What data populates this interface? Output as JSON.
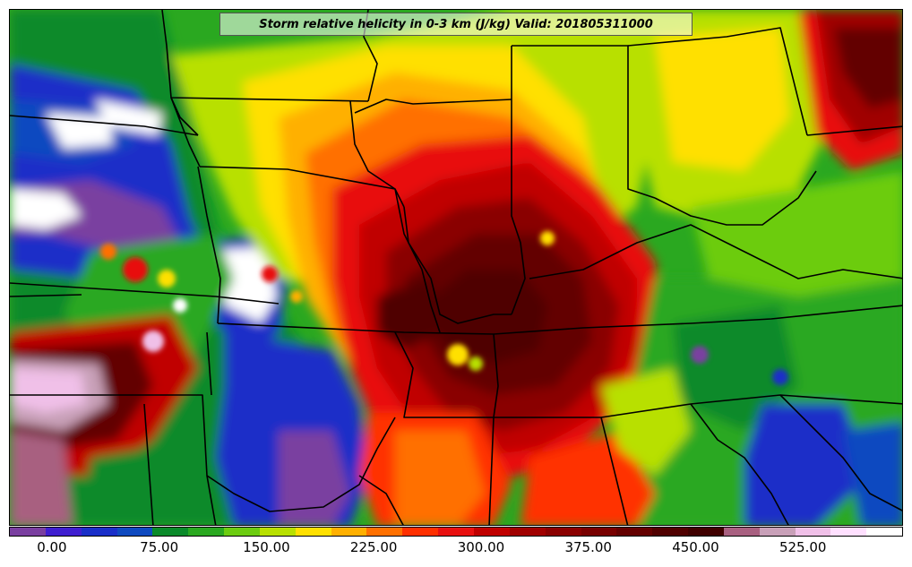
{
  "title": "Storm relative helicity in 0-3 km (J/kg) Valid: 201805311000",
  "colorbar": {
    "colors": [
      "#7a3fa0",
      "#3f1fd0",
      "#1a2fc8",
      "#0f4ac0",
      "#0a8a2a",
      "#2aa820",
      "#6ccc10",
      "#b8e000",
      "#ffe000",
      "#ffb000",
      "#ff7000",
      "#ff3000",
      "#e81010",
      "#c00000",
      "#a00000",
      "#8a0000",
      "#780000",
      "#640000",
      "#500000",
      "#400000",
      "#a86080",
      "#c8a0b8",
      "#f0c0e8",
      "#ffe0ff",
      "#ffffff"
    ],
    "tick_labels": [
      "0.00",
      "75.00",
      "150.00",
      "225.00",
      "300.00",
      "375.00",
      "450.00",
      "525.00"
    ],
    "tick_values": [
      0,
      75,
      150,
      225,
      300,
      375,
      450,
      525
    ],
    "min": -30,
    "max": 595
  }
}
